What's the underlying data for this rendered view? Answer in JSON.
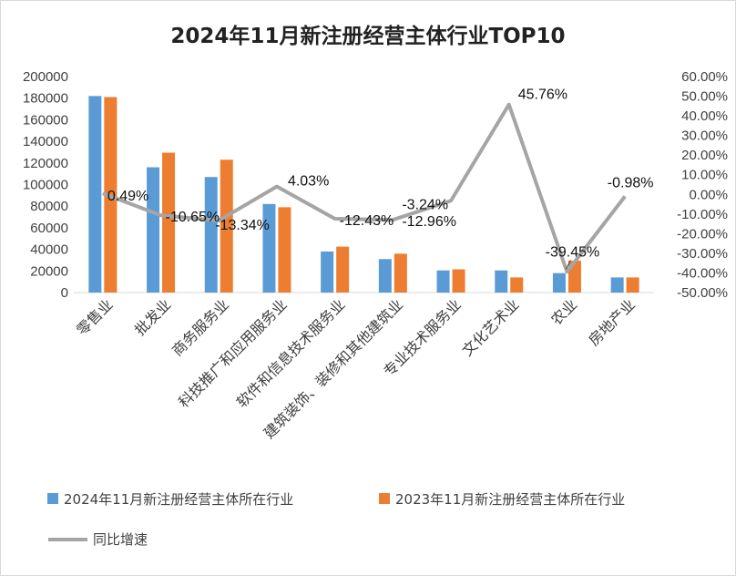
{
  "chart_data": {
    "type": "bar",
    "title": "2024年11月新注册经营主体行业TOP10",
    "categories": [
      "零售业",
      "批发业",
      "商务服务业",
      "科技推广和应用服务业",
      "软件和信息技术服务业",
      "建筑装饰、装修和其他建筑业",
      "专业技术服务业",
      "文化艺术业",
      "农业",
      "房地产业"
    ],
    "series": [
      {
        "name": "2024年11月新注册经营主体所在行业",
        "type": "bar",
        "axis": "left",
        "color": "#5B9BD5",
        "values": [
          182000,
          116000,
          107000,
          82000,
          38000,
          31000,
          20500,
          20500,
          18000,
          14000
        ]
      },
      {
        "name": "2023年11月新注册经营主体所在行业",
        "type": "bar",
        "axis": "left",
        "color": "#ED7D31",
        "values": [
          181000,
          129500,
          123000,
          79000,
          42500,
          36000,
          21500,
          14000,
          29500,
          14000
        ]
      },
      {
        "name": "同比增速",
        "type": "line",
        "axis": "right",
        "color": "#A5A5A5",
        "values": [
          0.49,
          -10.65,
          -13.34,
          4.03,
          -12.43,
          -12.96,
          -3.24,
          45.76,
          -39.45,
          -0.98
        ],
        "labels": [
          "0.49%",
          "-10.65%",
          "-13.34%",
          "4.03%",
          "-12.43%",
          "-12.96%",
          "-3.24%",
          "45.76%",
          "-39.45%",
          "-0.98%"
        ]
      }
    ],
    "y_left": {
      "min": 0,
      "max": 200000,
      "step": 20000,
      "ticks": [
        "0",
        "20000",
        "40000",
        "60000",
        "80000",
        "100000",
        "120000",
        "140000",
        "160000",
        "180000",
        "200000"
      ]
    },
    "y_right": {
      "min": -50,
      "max": 60,
      "step": 10,
      "ticks": [
        "-50.00%",
        "-40.00%",
        "-30.00%",
        "-20.00%",
        "-10.00%",
        "0.00%",
        "10.00%",
        "20.00%",
        "30.00%",
        "40.00%",
        "50.00%",
        "60.00%"
      ]
    },
    "legend_position": "bottom",
    "grid": false
  }
}
